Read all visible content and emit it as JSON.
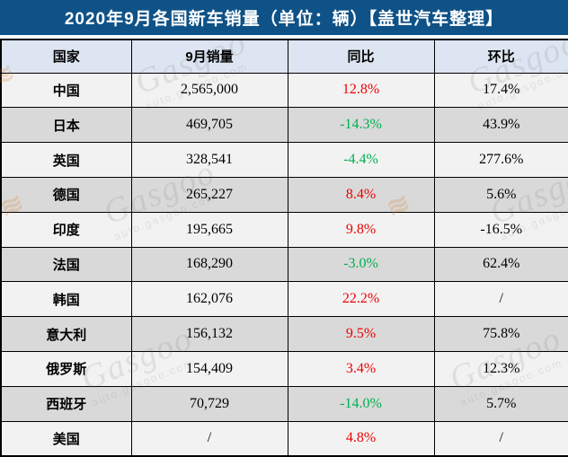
{
  "title": "2020年9月各国新车销量（单位：辆）【盖世汽车整理】",
  "colors": {
    "title_bg": "#0e5287",
    "header_bg": "#dce5f1",
    "row_light": "#f2f2f2",
    "row_dark": "#d9d9d9",
    "yoy_up_red": "#ee0000",
    "yoy_down_green": "#00b050",
    "grid": "#000000"
  },
  "watermark": {
    "brand": "Gasgoo",
    "site": "auto.gasgoo.com",
    "swirl": "≋"
  },
  "chart_data": {
    "type": "table",
    "title": "2020年9月各国新车销量（单位：辆）【盖世汽车整理】",
    "columns": [
      "国家",
      "9月销量",
      "同比",
      "环比"
    ],
    "rows": [
      {
        "country": "中国",
        "sales": "2,565,000",
        "yoy": "12.8%",
        "yoy_color": "red",
        "mom": "17.4%"
      },
      {
        "country": "日本",
        "sales": "469,705",
        "yoy": "-14.3%",
        "yoy_color": "green",
        "mom": "43.9%"
      },
      {
        "country": "英国",
        "sales": "328,541",
        "yoy": "-4.4%",
        "yoy_color": "green",
        "mom": "277.6%"
      },
      {
        "country": "德国",
        "sales": "265,227",
        "yoy": "8.4%",
        "yoy_color": "red",
        "mom": "5.6%"
      },
      {
        "country": "印度",
        "sales": "195,665",
        "yoy": "9.8%",
        "yoy_color": "red",
        "mom": "-16.5%"
      },
      {
        "country": "法国",
        "sales": "168,290",
        "yoy": "-3.0%",
        "yoy_color": "green",
        "mom": "62.4%"
      },
      {
        "country": "韩国",
        "sales": "162,076",
        "yoy": "22.2%",
        "yoy_color": "red",
        "mom": "/"
      },
      {
        "country": "意大利",
        "sales": "156,132",
        "yoy": "9.5%",
        "yoy_color": "red",
        "mom": "75.8%"
      },
      {
        "country": "俄罗斯",
        "sales": "154,409",
        "yoy": "3.4%",
        "yoy_color": "red",
        "mom": "12.3%"
      },
      {
        "country": "西班牙",
        "sales": "70,729",
        "yoy": "-14.0%",
        "yoy_color": "green",
        "mom": "5.7%"
      },
      {
        "country": "美国",
        "sales": "/",
        "yoy": "4.8%",
        "yoy_color": "red",
        "mom": "/"
      }
    ]
  }
}
